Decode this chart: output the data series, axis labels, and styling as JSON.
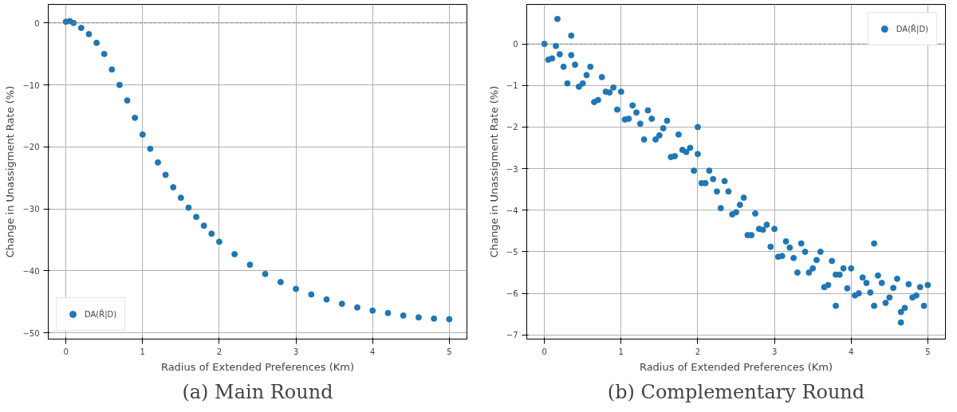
{
  "chart_data": [
    {
      "type": "scatter",
      "xlabel": "Radius of Extended Preferences (Km)",
      "ylabel": "Change in Unassigment Rate (%)",
      "annotations": [
        "(a) Main Round"
      ],
      "x": [
        0,
        0.05,
        0.1,
        0.2,
        0.3,
        0.4,
        0.5,
        0.6,
        0.7,
        0.8,
        0.9,
        1.0,
        1.1,
        1.2,
        1.3,
        1.4,
        1.5,
        1.6,
        1.7,
        1.8,
        1.9,
        2.0,
        2.2,
        2.4,
        2.6,
        2.8,
        3.0,
        3.2,
        3.4,
        3.6,
        3.8,
        4.0,
        4.2,
        4.4,
        4.6,
        4.8,
        5.0
      ],
      "series": [
        {
          "name": "DA(R̂|D)",
          "color": "#1f77b4",
          "values": [
            0.2,
            0.3,
            0,
            -0.8,
            -1.8,
            -3.2,
            -5,
            -7.5,
            -10,
            -12.5,
            -15.3,
            -18,
            -20.3,
            -22.5,
            -24.5,
            -26.5,
            -28.2,
            -29.8,
            -31.3,
            -32.7,
            -34,
            -35.3,
            -37.3,
            -39,
            -40.5,
            -41.8,
            -42.9,
            -43.8,
            -44.6,
            -45.3,
            -45.9,
            -46.4,
            -46.8,
            -47.2,
            -47.5,
            -47.7,
            -47.8
          ]
        }
      ],
      "xlim": [
        -0.23,
        5.23
      ],
      "ylim": [
        -51,
        3
      ],
      "xticks": [
        0,
        1,
        2,
        3,
        4,
        5
      ],
      "yticks": [
        0,
        -10,
        -20,
        -30,
        -40,
        -50
      ],
      "ref_lines": [
        {
          "axis": "y",
          "value": 0,
          "color": "#808080",
          "line_style": "dashed"
        }
      ],
      "grid": true,
      "legend": "bottom left",
      "marker": "circle"
    },
    {
      "type": "scatter",
      "xlabel": "Radius of Extended Preferences (Km)",
      "ylabel": "Change in Unassigment Rate (%)",
      "annotations": [
        "(b) Complementary Round"
      ],
      "x": [
        0,
        0.1,
        0.2,
        0.3,
        0.4,
        0.5,
        0.6,
        0.7,
        0.8,
        0.9,
        1.0,
        1.1,
        1.2,
        1.3,
        1.4,
        1.5,
        1.6,
        1.7,
        1.8,
        1.9,
        2.0,
        2.1,
        2.2,
        2.3,
        2.4,
        2.5,
        2.6,
        2.7,
        2.8,
        2.9,
        3.0,
        3.1,
        3.2,
        3.3,
        3.4,
        3.5,
        3.6,
        3.7,
        3.8,
        3.9,
        4.0,
        4.1,
        4.2,
        4.3,
        4.4,
        4.5,
        4.6,
        4.7,
        4.8,
        4.9,
        5.0,
        0.05,
        0.15,
        0.25,
        0.35,
        0.45,
        0.55,
        0.65,
        0.75,
        0.85,
        0.95,
        1.05,
        1.15,
        1.25,
        1.35,
        1.45,
        1.55,
        1.65,
        1.75,
        1.85,
        1.95,
        2.05,
        2.15,
        2.25,
        2.35,
        2.45,
        2.55,
        2.65,
        2.75,
        2.85,
        2.95,
        3.05,
        3.15,
        3.25,
        3.35,
        3.45,
        3.55,
        3.65,
        3.75,
        3.85,
        3.95,
        4.05,
        4.15,
        4.25,
        4.35,
        4.45,
        4.55,
        4.65,
        4.75,
        4.85,
        4.95,
        0.17,
        0.35,
        2.0,
        4.3,
        4.65,
        3.8
      ],
      "series": [
        {
          "name": "DA(R̂|D)",
          "color": "#1f77b4",
          "values": [
            0,
            -0.35,
            -0.25,
            -0.95,
            -0.5,
            -0.95,
            -0.55,
            -1.35,
            -1.15,
            -1.05,
            -1.15,
            -1.8,
            -1.65,
            -2.3,
            -1.8,
            -2.2,
            -1.85,
            -2.7,
            -2.55,
            -2.5,
            -2.65,
            -3.35,
            -3.25,
            -3.95,
            -3.55,
            -4.05,
            -3.7,
            -4.6,
            -4.45,
            -4.35,
            -4.45,
            -5.1,
            -4.9,
            -5.5,
            -5.0,
            -5.4,
            -5.0,
            -5.8,
            -5.55,
            -5.4,
            -5.4,
            -6.0,
            -5.75,
            -6.3,
            -5.75,
            -6.1,
            -5.65,
            -6.35,
            -6.1,
            -5.85,
            -5.8,
            -0.38,
            -0.05,
            -0.55,
            -0.27,
            -1.03,
            -0.75,
            -1.4,
            -0.8,
            -1.17,
            -1.58,
            -1.82,
            -1.48,
            -1.92,
            -1.6,
            -2.3,
            -2.03,
            -2.72,
            -2.18,
            -2.6,
            -3.05,
            -3.35,
            -3.05,
            -3.55,
            -3.3,
            -4.1,
            -3.87,
            -4.6,
            -4.08,
            -4.47,
            -4.88,
            -5.12,
            -4.75,
            -5.15,
            -4.8,
            -5.5,
            -5.2,
            -5.85,
            -5.22,
            -5.55,
            -5.88,
            -6.05,
            -5.62,
            -5.98,
            -5.57,
            -6.23,
            -5.87,
            -6.45,
            -5.78,
            -6.05,
            -6.3,
            0.6,
            0.2,
            -2.0,
            -4.8,
            -6.7,
            -6.3
          ]
        }
      ],
      "xlim": [
        -0.23,
        5.23
      ],
      "ylim": [
        -7.1,
        0.95
      ],
      "xticks": [
        0,
        1,
        2,
        3,
        4,
        5
      ],
      "yticks": [
        0,
        -1,
        -2,
        -3,
        -4,
        -5,
        -6,
        -7
      ],
      "ref_lines": [
        {
          "axis": "y",
          "value": 0,
          "color": "#808080",
          "line_style": "dashed"
        }
      ],
      "grid": true,
      "legend": "top right",
      "marker": "circle"
    }
  ]
}
